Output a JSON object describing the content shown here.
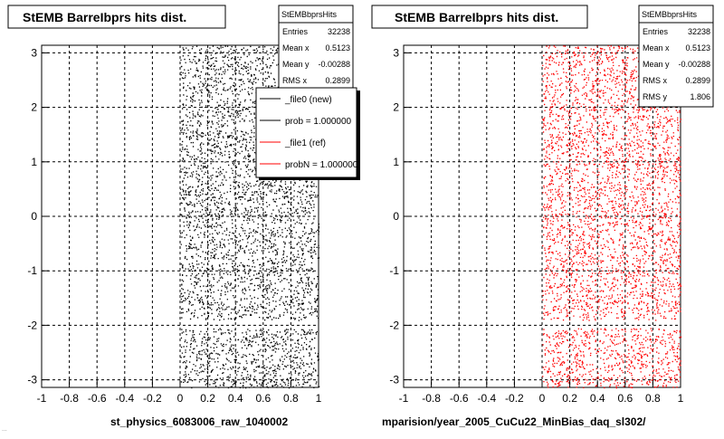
{
  "colors": {
    "left_points": "#000000",
    "right_points": "#ff0000"
  },
  "bottom_left_caption": "...",
  "chart_data": [
    {
      "type": "scatter",
      "title": "StEMB BarreIbprs hits dist.",
      "xlabel": "st_physics_6083006_raw_1040002",
      "ylabel": "",
      "xlim": [
        -1,
        1
      ],
      "ylim": [
        -3.14,
        3.14
      ],
      "x_ticks": [
        "-1",
        "-0.8",
        "-0.6",
        "-0.4",
        "-0.2",
        "0",
        "0.2",
        "0.4",
        "0.6",
        "0.8",
        "1"
      ],
      "y_ticks": [
        "-3",
        "-2",
        "-1",
        "0",
        "1",
        "2",
        "3"
      ],
      "grid": true,
      "fill_region": {
        "x": [
          0,
          1
        ],
        "y": [
          -3.14,
          3.14
        ],
        "gap_y": [
          -2.05,
          -1.9
        ]
      },
      "stats": {
        "name": "StEMBbprsHits",
        "rows": [
          {
            "label": "Entries",
            "value": "32238"
          },
          {
            "label": "Mean x",
            "value": "0.5123"
          },
          {
            "label": "Mean y",
            "value": "-0.00288"
          },
          {
            "label": "RMS x",
            "value": "0.2899"
          }
        ]
      },
      "legend": {
        "placement": "top-right",
        "entries": [
          {
            "label": "_file0 (new)",
            "color": "#000000"
          },
          {
            "label": "prob = 1.000000",
            "color": "#000000"
          },
          {
            "label": "_file1 (ref)",
            "color": "#ff0000"
          },
          {
            "label": "probN = 1.000000",
            "color": "#ff0000"
          }
        ]
      }
    },
    {
      "type": "scatter",
      "title": "StEMB BarreIbprs hits dist.",
      "xlabel": "mparision/year_2005_CuCu22_MinBias_daq_sl302/",
      "ylabel": "",
      "xlim": [
        -1,
        1
      ],
      "ylim": [
        -3.14,
        3.14
      ],
      "x_ticks": [
        "-1",
        "-0.8",
        "-0.6",
        "-0.4",
        "-0.2",
        "0",
        "0.2",
        "0.4",
        "0.6",
        "0.8",
        "1"
      ],
      "y_ticks": [
        "-3",
        "-2",
        "-1",
        "0",
        "1",
        "2",
        "3"
      ],
      "grid": true,
      "fill_region": {
        "x": [
          0,
          1
        ],
        "y": [
          -3.14,
          3.14
        ],
        "gap_y": [
          -2.05,
          -1.9
        ]
      },
      "stats": {
        "name": "StEMBbprsHits",
        "rows": [
          {
            "label": "Entries",
            "value": "32238"
          },
          {
            "label": "Mean x",
            "value": "0.5123"
          },
          {
            "label": "Mean y",
            "value": "-0.00288"
          },
          {
            "label": "RMS x",
            "value": "0.2899"
          },
          {
            "label": "RMS y",
            "value": "1.806"
          }
        ]
      }
    }
  ]
}
